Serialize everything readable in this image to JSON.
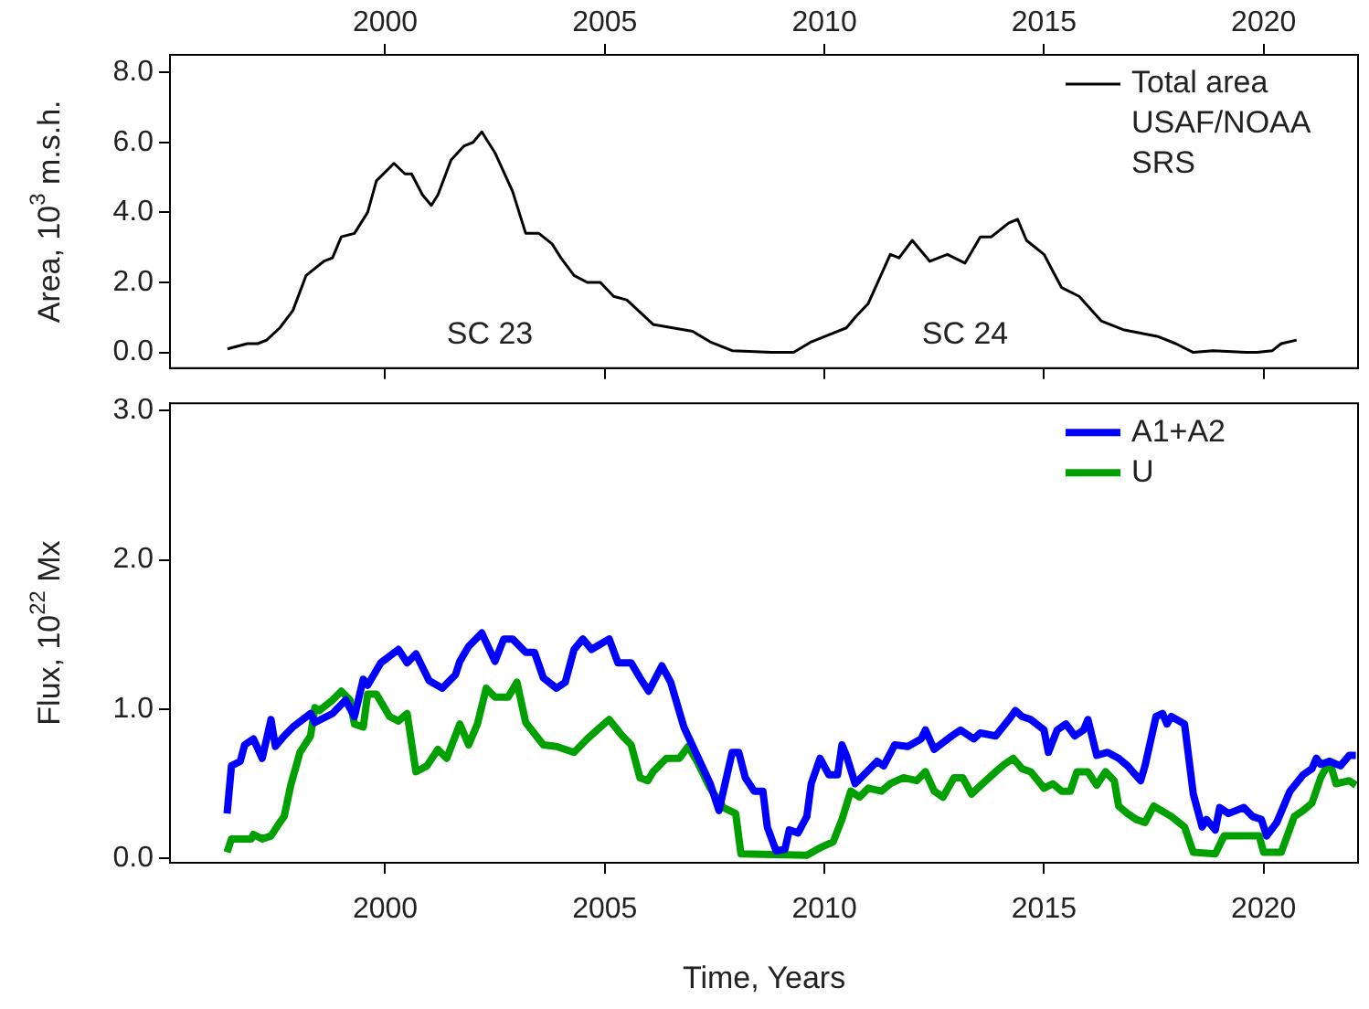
{
  "chart_data": [
    {
      "type": "line",
      "ylabel": "Area, 10$^{3}$ m.s.h.",
      "xlim": [
        1995.1,
        2022.15
      ],
      "ylim": [
        -0.45,
        8.5
      ],
      "yticks": [
        {
          "value": 0,
          "label": "0.0"
        },
        {
          "value": 2,
          "label": "2.0"
        },
        {
          "value": 4,
          "label": "4.0"
        },
        {
          "value": 6,
          "label": "6.0"
        },
        {
          "value": 8,
          "label": "8.0"
        }
      ],
      "x2lim": [
        1995.1,
        2022.15
      ],
      "x2ticks": [
        2000,
        2005,
        2010,
        2015,
        2020
      ],
      "tick_labels": "y",
      "legend": "top right",
      "annotations": [
        "SC 23",
        "SC 24"
      ],
      "series": [
        {
          "name": "Total area USAF/NOAA SRS",
          "color": "#000000",
          "x": [
            1996.41,
            1996.86,
            1997.1,
            1997.3,
            1997.6,
            1997.9,
            1998.2,
            1998.6,
            1998.8,
            1999.0,
            1999.3,
            1999.6,
            1999.8,
            2000.2,
            2000.45,
            2000.6,
            2000.85,
            2001.05,
            2001.2,
            2001.5,
            2001.8,
            2002.0,
            2002.2,
            2002.3,
            2002.5,
            2002.9,
            2003.2,
            2003.5,
            2003.8,
            2004.0,
            2004.3,
            2004.6,
            2004.9,
            2005.2,
            2005.5,
            2006.1,
            2006.55,
            2007.0,
            2007.4,
            2007.9,
            2008.8,
            2009.3,
            2009.7,
            2010.1,
            2010.5,
            2010.7,
            2011.0,
            2011.5,
            2011.7,
            2012.0,
            2012.4,
            2012.6,
            2012.8,
            2013.2,
            2013.55,
            2013.8,
            2014.2,
            2014.4,
            2014.6,
            2015.0,
            2015.4,
            2015.8,
            2016.3,
            2016.8,
            2017.2,
            2017.6,
            2018.0,
            2018.4,
            2018.85,
            2019.6,
            2019.85,
            2020.2,
            2020.4,
            2020.75
          ],
          "values": [
            0.1,
            0.25,
            0.25,
            0.35,
            0.7,
            1.2,
            2.2,
            2.6,
            2.7,
            3.3,
            3.4,
            4.0,
            4.9,
            5.4,
            5.1,
            5.1,
            4.5,
            4.2,
            4.5,
            5.5,
            5.9,
            6.0,
            6.3,
            6.1,
            5.7,
            4.6,
            3.4,
            3.4,
            3.1,
            2.7,
            2.2,
            2.0,
            2.0,
            1.6,
            1.5,
            0.8,
            0.7,
            0.6,
            0.3,
            0.05,
            0.0,
            0.0,
            0.3,
            0.5,
            0.7,
            1.0,
            1.4,
            2.8,
            2.7,
            3.2,
            2.6,
            2.7,
            2.8,
            2.55,
            3.3,
            3.3,
            3.7,
            3.8,
            3.2,
            2.8,
            1.85,
            1.6,
            0.9,
            0.65,
            0.55,
            0.45,
            0.25,
            0.0,
            0.05,
            0.0,
            0.0,
            0.05,
            0.25,
            0.35
          ]
        }
      ]
    },
    {
      "type": "line",
      "xlabel": "Time, Years",
      "ylabel": "Flux, 10$^{22}$ Mx",
      "xlim": [
        1995.1,
        2022.15
      ],
      "ylim": [
        -0.03,
        3.05
      ],
      "xticks": [
        2000,
        2005,
        2010,
        2015,
        2020
      ],
      "yticks": [
        {
          "value": 0,
          "label": "0.0"
        },
        {
          "value": 1,
          "label": "1.0"
        },
        {
          "value": 2,
          "label": "2.0"
        },
        {
          "value": 3,
          "label": "3.0"
        }
      ],
      "legend": "top right",
      "series": [
        {
          "name": "A1+A2",
          "color": "#0000ff",
          "x": [
            1996.4,
            1996.5,
            1996.7,
            1996.8,
            1997.0,
            1997.2,
            1997.4,
            1997.5,
            1997.7,
            1997.9,
            1998.3,
            1998.4,
            1998.8,
            1999.1,
            1999.3,
            1999.5,
            1999.6,
            1999.9,
            2000.3,
            2000.5,
            2000.7,
            2001.0,
            2001.3,
            2001.6,
            2001.7,
            2001.9,
            2002.2,
            2002.5,
            2002.7,
            2002.9,
            2003.2,
            2003.4,
            2003.6,
            2003.9,
            2004.1,
            2004.3,
            2004.5,
            2004.7,
            2005.1,
            2005.3,
            2005.6,
            2005.8,
            2006.0,
            2006.3,
            2006.5,
            2006.8,
            2007.1,
            2007.4,
            2007.6,
            2007.8,
            2007.9,
            2008.05,
            2008.2,
            2008.4,
            2008.6,
            2008.7,
            2008.9,
            2009.1,
            2009.2,
            2009.4,
            2009.6,
            2009.7,
            2009.9,
            2010.1,
            2010.3,
            2010.4,
            2010.5,
            2010.7,
            2010.9,
            2011.2,
            2011.35,
            2011.6,
            2011.9,
            2012.2,
            2012.3,
            2012.5,
            2012.9,
            2013.1,
            2013.4,
            2013.55,
            2013.9,
            2014.2,
            2014.35,
            2014.5,
            2014.7,
            2015.0,
            2015.1,
            2015.3,
            2015.5,
            2015.7,
            2015.9,
            2016.0,
            2016.2,
            2016.45,
            2016.7,
            2016.9,
            2017.2,
            2017.3,
            2017.55,
            2017.7,
            2017.8,
            2017.9,
            2018.2,
            2018.4,
            2018.6,
            2018.7,
            2018.9,
            2019.0,
            2019.2,
            2019.55,
            2019.75,
            2019.95,
            2020.07,
            2020.3,
            2020.6,
            2020.9,
            2021.1,
            2021.2,
            2021.3,
            2021.5,
            2021.75,
            2021.95,
            2022.1
          ],
          "values": [
            0.3,
            0.62,
            0.65,
            0.76,
            0.8,
            0.67,
            0.93,
            0.75,
            0.82,
            0.88,
            0.97,
            0.91,
            0.97,
            1.06,
            0.95,
            1.2,
            1.16,
            1.31,
            1.4,
            1.31,
            1.37,
            1.19,
            1.14,
            1.23,
            1.32,
            1.42,
            1.51,
            1.32,
            1.47,
            1.47,
            1.38,
            1.38,
            1.21,
            1.14,
            1.18,
            1.4,
            1.47,
            1.4,
            1.47,
            1.31,
            1.31,
            1.21,
            1.12,
            1.29,
            1.18,
            0.88,
            0.69,
            0.5,
            0.32,
            0.58,
            0.71,
            0.71,
            0.54,
            0.45,
            0.45,
            0.21,
            0.05,
            0.06,
            0.19,
            0.17,
            0.28,
            0.5,
            0.67,
            0.56,
            0.56,
            0.76,
            0.69,
            0.5,
            0.56,
            0.65,
            0.62,
            0.76,
            0.75,
            0.8,
            0.86,
            0.73,
            0.82,
            0.86,
            0.8,
            0.84,
            0.82,
            0.93,
            0.99,
            0.95,
            0.93,
            0.86,
            0.71,
            0.86,
            0.9,
            0.82,
            0.86,
            0.93,
            0.69,
            0.71,
            0.67,
            0.62,
            0.52,
            0.62,
            0.95,
            0.97,
            0.9,
            0.95,
            0.9,
            0.43,
            0.21,
            0.26,
            0.19,
            0.34,
            0.3,
            0.34,
            0.28,
            0.26,
            0.15,
            0.24,
            0.45,
            0.56,
            0.6,
            0.67,
            0.63,
            0.65,
            0.62,
            0.69,
            0.69
          ]
        },
        {
          "name": "U",
          "color": "#00a000",
          "x": [
            1996.4,
            1996.5,
            1996.95,
            1997.0,
            1997.2,
            1997.4,
            1997.6,
            1997.7,
            1997.85,
            1998.06,
            1998.3,
            1998.4,
            1998.5,
            1998.8,
            1999.0,
            1999.2,
            1999.3,
            1999.5,
            1999.6,
            1999.8,
            2000.1,
            2000.3,
            2000.5,
            2000.7,
            2000.95,
            2001.2,
            2001.4,
            2001.7,
            2001.9,
            2002.1,
            2002.3,
            2002.5,
            2002.8,
            2003.0,
            2003.2,
            2003.6,
            2003.9,
            2004.3,
            2004.6,
            2004.9,
            2005.1,
            2005.4,
            2005.6,
            2005.8,
            2005.98,
            2006.1,
            2006.4,
            2006.7,
            2006.9,
            2007.1,
            2007.4,
            2007.7,
            2007.98,
            2008.1,
            2009.6,
            2009.9,
            2010.2,
            2010.4,
            2010.6,
            2010.8,
            2011.0,
            2011.3,
            2011.5,
            2011.8,
            2012.1,
            2012.3,
            2012.5,
            2012.7,
            2012.95,
            2013.15,
            2013.35,
            2013.6,
            2013.9,
            2014.1,
            2014.3,
            2014.5,
            2014.7,
            2015.0,
            2015.2,
            2015.4,
            2015.6,
            2015.75,
            2016.0,
            2016.2,
            2016.4,
            2016.6,
            2016.7,
            2016.9,
            2017.1,
            2017.3,
            2017.5,
            2017.9,
            2018.2,
            2018.4,
            2018.9,
            2019.1,
            2019.9,
            2020.0,
            2020.4,
            2020.7,
            2020.9,
            2021.1,
            2021.3,
            2021.5,
            2021.65,
            2021.95,
            2022.1
          ],
          "values": [
            0.04,
            0.13,
            0.13,
            0.16,
            0.13,
            0.15,
            0.24,
            0.28,
            0.49,
            0.71,
            0.82,
            1.01,
            0.99,
            1.06,
            1.12,
            1.06,
            0.9,
            0.88,
            1.1,
            1.1,
            0.95,
            0.92,
            0.97,
            0.58,
            0.62,
            0.73,
            0.67,
            0.9,
            0.76,
            0.9,
            1.14,
            1.08,
            1.08,
            1.18,
            0.91,
            0.76,
            0.75,
            0.71,
            0.8,
            0.88,
            0.93,
            0.82,
            0.76,
            0.54,
            0.52,
            0.58,
            0.67,
            0.67,
            0.75,
            0.65,
            0.47,
            0.34,
            0.3,
            0.03,
            0.02,
            0.07,
            0.11,
            0.26,
            0.45,
            0.41,
            0.47,
            0.45,
            0.5,
            0.54,
            0.52,
            0.58,
            0.45,
            0.41,
            0.54,
            0.54,
            0.43,
            0.5,
            0.58,
            0.63,
            0.67,
            0.6,
            0.58,
            0.47,
            0.5,
            0.45,
            0.45,
            0.58,
            0.58,
            0.49,
            0.58,
            0.52,
            0.35,
            0.3,
            0.26,
            0.24,
            0.35,
            0.28,
            0.21,
            0.04,
            0.03,
            0.15,
            0.15,
            0.04,
            0.04,
            0.28,
            0.32,
            0.37,
            0.54,
            0.65,
            0.5,
            0.52,
            0.49
          ]
        }
      ]
    }
  ]
}
